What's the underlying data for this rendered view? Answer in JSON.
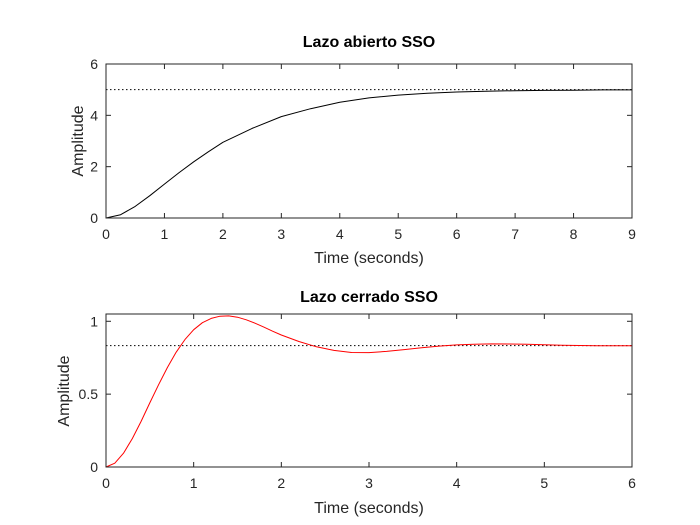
{
  "chart_data": [
    {
      "type": "line",
      "title": "Lazo abierto SSO",
      "xlabel": "Time (seconds)",
      "ylabel": "Amplitude",
      "xlim": [
        0,
        9
      ],
      "ylim": [
        0,
        6
      ],
      "xticks": [
        "0",
        "1",
        "2",
        "3",
        "4",
        "5",
        "6",
        "7",
        "8",
        "9"
      ],
      "yticks": [
        "0",
        "2",
        "4",
        "6"
      ],
      "grid": false,
      "steady_state": 5.0,
      "series": [
        {
          "color": "#000000",
          "x": [
            0,
            0.25,
            0.5,
            0.75,
            1,
            1.25,
            1.5,
            1.75,
            2,
            2.5,
            3,
            3.5,
            4,
            4.5,
            5,
            5.5,
            6,
            6.5,
            7,
            7.5,
            8,
            8.5,
            9
          ],
          "y": [
            0,
            0.13,
            0.45,
            0.87,
            1.32,
            1.77,
            2.19,
            2.58,
            2.95,
            3.49,
            3.95,
            4.26,
            4.51,
            4.68,
            4.79,
            4.86,
            4.91,
            4.94,
            4.96,
            4.97,
            4.98,
            4.99,
            4.99
          ]
        }
      ]
    },
    {
      "type": "line",
      "title": "Lazo cerrado SSO",
      "xlabel": "Time (seconds)",
      "ylabel": "Amplitude",
      "xlim": [
        0,
        6
      ],
      "ylim": [
        0,
        1.05
      ],
      "xticks": [
        "0",
        "1",
        "2",
        "3",
        "4",
        "5",
        "6"
      ],
      "yticks": [
        "0",
        "0.5",
        "1"
      ],
      "grid": false,
      "steady_state": 0.833,
      "series": [
        {
          "color": "#ff0000",
          "x": [
            0,
            0.1,
            0.2,
            0.3,
            0.4,
            0.5,
            0.6,
            0.7,
            0.8,
            0.9,
            1.0,
            1.1,
            1.2,
            1.3,
            1.4,
            1.5,
            1.6,
            1.7,
            1.8,
            1.9,
            2.0,
            2.2,
            2.4,
            2.6,
            2.8,
            3.0,
            3.2,
            3.4,
            3.6,
            3.8,
            4.0,
            4.2,
            4.4,
            4.6,
            4.8,
            5.0,
            5.2,
            5.4,
            5.6,
            5.8,
            6.0
          ],
          "y": [
            0,
            0.026,
            0.095,
            0.195,
            0.313,
            0.44,
            0.565,
            0.683,
            0.787,
            0.874,
            0.942,
            0.99,
            1.02,
            1.035,
            1.037,
            1.028,
            1.01,
            0.987,
            0.96,
            0.932,
            0.906,
            0.861,
            0.825,
            0.8,
            0.786,
            0.785,
            0.793,
            0.806,
            0.818,
            0.83,
            0.838,
            0.843,
            0.845,
            0.844,
            0.842,
            0.839,
            0.836,
            0.834,
            0.832,
            0.832,
            0.832
          ]
        }
      ]
    }
  ]
}
